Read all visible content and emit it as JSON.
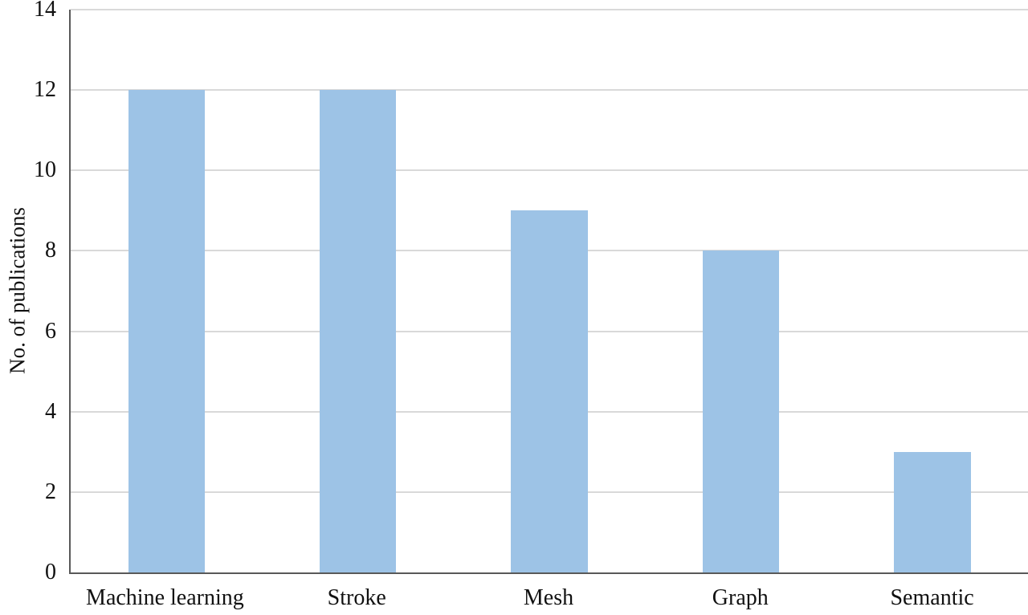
{
  "chart_data": {
    "type": "bar",
    "categories": [
      "Machine learning",
      "Stroke",
      "Mesh",
      "Graph",
      "Semantic"
    ],
    "values": [
      12,
      12,
      9,
      8,
      3
    ],
    "title": "",
    "xlabel": "",
    "ylabel": "No. of publications",
    "ylim": [
      0,
      14
    ],
    "yticks": [
      0,
      2,
      4,
      6,
      8,
      10,
      12,
      14
    ],
    "grid": true,
    "legend_position": "none",
    "colors": {
      "bar": "#9DC3E6",
      "gridline": "#D9D9D9",
      "axis": "#595959",
      "text": "#111111"
    }
  }
}
